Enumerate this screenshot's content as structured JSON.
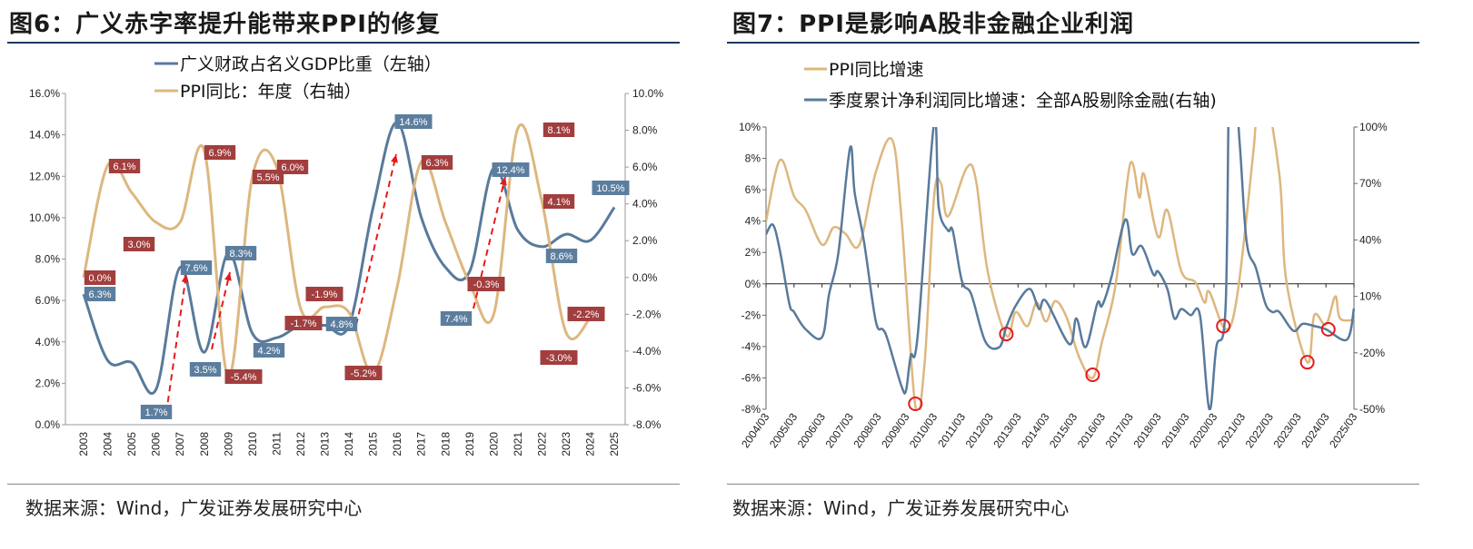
{
  "left": {
    "title": "图6：广义赤字率提升能带来PPI的修复",
    "source": "数据来源：Wind，广发证券发展研究中心"
  },
  "right": {
    "title": "图7：PPI是影响A股非金融企业利润",
    "source": "数据来源：Wind，广发证券发展研究中心"
  },
  "colors": {
    "blue": "#587A9C",
    "tan": "#DDB77F",
    "ppi_label_bg": "#A23E3E",
    "fiscal_label_bg": "#5C7E9E",
    "arrow": "#E8191B",
    "circle": "#E8191B",
    "title_rule": "#1F3864"
  },
  "chart_data": [
    {
      "type": "line",
      "categories": [
        "2003",
        "2004",
        "2005",
        "2006",
        "2007",
        "2008",
        "2009",
        "2010",
        "2011",
        "2012",
        "2013",
        "2014",
        "2015",
        "2016",
        "2017",
        "2018",
        "2019",
        "2020",
        "2021",
        "2022",
        "2023",
        "2024",
        "2025"
      ],
      "left_axis": {
        "ylim": [
          0,
          16
        ],
        "ticks": [
          "0.0%",
          "2.0%",
          "4.0%",
          "6.0%",
          "8.0%",
          "10.0%",
          "12.0%",
          "14.0%",
          "16.0%"
        ]
      },
      "right_axis": {
        "ylim": [
          -8,
          10
        ],
        "ticks": [
          "-8.0%",
          "-6.0%",
          "-4.0%",
          "-2.0%",
          "0.0%",
          "2.0%",
          "4.0%",
          "6.0%",
          "8.0%",
          "10.0%"
        ]
      },
      "legend_position": "top",
      "series": [
        {
          "name": "广义财政占名义GDP比重（左轴）",
          "axis": "left",
          "color_key": "blue",
          "values": [
            6.3,
            3.1,
            3.0,
            1.7,
            7.6,
            3.5,
            8.3,
            4.4,
            4.2,
            4.8,
            4.8,
            4.8,
            10.5,
            14.6,
            10.0,
            7.6,
            7.4,
            12.4,
            9.4,
            8.6,
            9.2,
            8.9,
            10.5
          ]
        },
        {
          "name": "PPI同比：年度（右轴）",
          "axis": "right",
          "color_key": "tan",
          "values": [
            0.0,
            6.1,
            4.6,
            3.0,
            3.0,
            6.9,
            -5.4,
            5.5,
            6.0,
            -1.7,
            -1.6,
            -1.9,
            -5.2,
            -0.5,
            6.3,
            3.0,
            -0.3,
            -2.0,
            8.1,
            4.1,
            -3.0,
            -2.2,
            null
          ]
        }
      ],
      "data_labels": [
        {
          "series": 1,
          "year": "2003",
          "text": "0.0%"
        },
        {
          "series": 1,
          "year": "2004",
          "text": "6.1%"
        },
        {
          "series": 1,
          "year": "2006",
          "text": "3.0%"
        },
        {
          "series": 1,
          "year": "2008",
          "text": "6.9%"
        },
        {
          "series": 1,
          "year": "2009",
          "text": "-5.4%"
        },
        {
          "series": 1,
          "year": "2010",
          "text": "5.5%"
        },
        {
          "series": 1,
          "year": "2011",
          "text": "6.0%"
        },
        {
          "series": 1,
          "year": "2012",
          "text": "-1.7%"
        },
        {
          "series": 1,
          "year": "2014",
          "text": "-1.9%"
        },
        {
          "series": 1,
          "year": "2015",
          "text": "-5.2%"
        },
        {
          "series": 1,
          "year": "2017",
          "text": "6.3%"
        },
        {
          "series": 1,
          "year": "2019",
          "text": "-0.3%"
        },
        {
          "series": 1,
          "year": "2021",
          "text": "8.1%"
        },
        {
          "series": 1,
          "year": "2022",
          "text": "4.1%"
        },
        {
          "series": 1,
          "year": "2023",
          "text": "-3.0%"
        },
        {
          "series": 1,
          "year": "2024",
          "text": "-2.2%"
        },
        {
          "series": 0,
          "year": "2003",
          "text": "6.3%"
        },
        {
          "series": 0,
          "year": "2006",
          "text": "1.7%"
        },
        {
          "series": 0,
          "year": "2007",
          "text": "7.6%"
        },
        {
          "series": 0,
          "year": "2008",
          "text": "3.5%"
        },
        {
          "series": 0,
          "year": "2009",
          "text": "8.3%"
        },
        {
          "series": 0,
          "year": "2011",
          "text": "4.2%"
        },
        {
          "series": 0,
          "year": "2014",
          "text": "4.8%"
        },
        {
          "series": 0,
          "year": "2016",
          "text": "14.6%"
        },
        {
          "series": 0,
          "year": "2019",
          "text": "7.4%"
        },
        {
          "series": 0,
          "year": "2020",
          "text": "12.4%"
        },
        {
          "series": 0,
          "year": "2022",
          "text": "8.6%"
        },
        {
          "series": 0,
          "year": "2025",
          "text": "10.5%"
        }
      ],
      "annotations": [
        {
          "type": "dashed-arrow",
          "from_year": "2006",
          "to_year": "2007"
        },
        {
          "type": "dashed-arrow",
          "from_year": "2008",
          "to_year": "2009"
        },
        {
          "type": "dashed-arrow",
          "from_year": "2014",
          "to_year": "2016"
        },
        {
          "type": "dashed-arrow",
          "from_year": "2019",
          "to_year": "2020"
        }
      ]
    },
    {
      "type": "line",
      "x_ticks": [
        "2004/03",
        "2005/03",
        "2006/03",
        "2007/03",
        "2008/03",
        "2009/03",
        "2010/03",
        "2011/03",
        "2012/03",
        "2013/03",
        "2014/03",
        "2015/03",
        "2016/03",
        "2017/03",
        "2018/03",
        "2019/03",
        "2020/03",
        "2021/03",
        "2022/03",
        "2023/03",
        "2024/03",
        "2025/03"
      ],
      "left_axis": {
        "ylim": [
          -8,
          10
        ],
        "ticks": [
          "-8%",
          "-6%",
          "-4%",
          "-2%",
          "0%",
          "2%",
          "4%",
          "6%",
          "8%",
          "10%"
        ]
      },
      "right_axis": {
        "ylim": [
          -50,
          100
        ],
        "ticks": [
          "-50%",
          "-20%",
          "10%",
          "40%",
          "70%",
          "100%"
        ]
      },
      "legend_position": "top",
      "series": [
        {
          "name": "PPI同比增速",
          "axis": "left",
          "color_key": "tan",
          "points": [
            [
              "2004/03",
              4.0
            ],
            [
              "2004/09",
              7.9
            ],
            [
              "2005/03",
              5.6
            ],
            [
              "2005/08",
              4.7
            ],
            [
              "2006/03",
              2.5
            ],
            [
              "2006/08",
              3.6
            ],
            [
              "2007/01",
              3.2
            ],
            [
              "2007/07",
              2.5
            ],
            [
              "2008/02",
              7.1
            ],
            [
              "2008/09",
              9.2
            ],
            [
              "2009/01",
              4.3
            ],
            [
              "2009/07",
              -7.8
            ],
            [
              "2009/11",
              -5.0
            ],
            [
              "2010/03",
              5.5
            ],
            [
              "2010/06",
              6.4
            ],
            [
              "2010/09",
              4.3
            ],
            [
              "2011/05",
              7.4
            ],
            [
              "2011/09",
              6.6
            ],
            [
              "2012/02",
              0.8
            ],
            [
              "2012/10",
              -3.3
            ],
            [
              "2013/02",
              -1.8
            ],
            [
              "2013/07",
              -2.7
            ],
            [
              "2013/11",
              -1.2
            ],
            [
              "2014/03",
              -2.4
            ],
            [
              "2014/07",
              -1.1
            ],
            [
              "2014/12",
              -2.2
            ],
            [
              "2015/05",
              -4.6
            ],
            [
              "2015/11",
              -6.0
            ],
            [
              "2016/03",
              -3.7
            ],
            [
              "2016/09",
              0.1
            ],
            [
              "2017/03",
              7.6
            ],
            [
              "2017/07",
              5.5
            ],
            [
              "2017/09",
              7.0
            ],
            [
              "2018/03",
              3.0
            ],
            [
              "2018/07",
              4.7
            ],
            [
              "2019/01",
              0.8
            ],
            [
              "2019/07",
              0.1
            ],
            [
              "2019/11",
              -1.2
            ],
            [
              "2020/01",
              -0.5
            ],
            [
              "2020/08",
              -2.9
            ],
            [
              "2021/01",
              -0.7
            ],
            [
              "2021/08",
              8.6
            ],
            [
              "2021/11",
              13.5
            ],
            [
              "2022/07",
              7.0
            ],
            [
              "2022/10",
              0.2
            ],
            [
              "2023/07",
              -5.0
            ],
            [
              "2023/10",
              -2.0
            ],
            [
              "2024/03",
              -2.6
            ],
            [
              "2024/07",
              -0.8
            ],
            [
              "2024/09",
              -2.2
            ],
            [
              "2025/03",
              -2.3
            ]
          ]
        },
        {
          "name": "季度累计净利润同比增速：全部A股剔除金融(右轴)",
          "axis": "right",
          "color_key": "blue",
          "points": [
            [
              "2004/03",
              43
            ],
            [
              "2004/06",
              48
            ],
            [
              "2004/09",
              34
            ],
            [
              "2005/01",
              6
            ],
            [
              "2005/03",
              1.7
            ],
            [
              "2005/08",
              -7.5
            ],
            [
              "2006/03",
              -11.7
            ],
            [
              "2006/06",
              11
            ],
            [
              "2006/10",
              33
            ],
            [
              "2007/03",
              88.8
            ],
            [
              "2007/05",
              65
            ],
            [
              "2007/09",
              39
            ],
            [
              "2008/02",
              -3
            ],
            [
              "2008/05",
              -7.5
            ],
            [
              "2008/07",
              -12.5
            ],
            [
              "2009/01",
              -37.5
            ],
            [
              "2009/03",
              -40
            ],
            [
              "2009/05",
              -21.7
            ],
            [
              "2009/08",
              -10.8
            ],
            [
              "2010/03",
              102
            ],
            [
              "2010/05",
              57.5
            ],
            [
              "2010/09",
              45
            ],
            [
              "2010/11",
              45
            ],
            [
              "2011/03",
              18
            ],
            [
              "2011/07",
              11
            ],
            [
              "2012/01",
              -14
            ],
            [
              "2012/07",
              -17
            ],
            [
              "2012/10",
              -6.3
            ],
            [
              "2013/02",
              5
            ],
            [
              "2013/08",
              14
            ],
            [
              "2013/12",
              3.3
            ],
            [
              "2014/03",
              7.5
            ],
            [
              "2015/01",
              -15.4
            ],
            [
              "2015/04",
              -1.7
            ],
            [
              "2015/08",
              -17
            ],
            [
              "2016/01",
              6.3
            ],
            [
              "2016/03",
              5
            ],
            [
              "2016/07",
              20
            ],
            [
              "2017/01",
              50.8
            ],
            [
              "2017/04",
              32.5
            ],
            [
              "2017/08",
              36.7
            ],
            [
              "2018/01",
              21.7
            ],
            [
              "2018/03",
              23.3
            ],
            [
              "2018/07",
              14
            ],
            [
              "2018/10",
              -1.7
            ],
            [
              "2019/01",
              3.3
            ],
            [
              "2019/05",
              0
            ],
            [
              "2019/09",
              0
            ],
            [
              "2020/01",
              -50
            ],
            [
              "2020/04",
              -17
            ],
            [
              "2020/08",
              5
            ],
            [
              "2020/10",
              150
            ],
            [
              "2021/02",
              91.7
            ],
            [
              "2021/05",
              39
            ],
            [
              "2021/09",
              25
            ],
            [
              "2022/01",
              6.3
            ],
            [
              "2022/04",
              1.7
            ],
            [
              "2022/07",
              1.7
            ],
            [
              "2023/01",
              -8.3
            ],
            [
              "2023/05",
              -4.6
            ],
            [
              "2023/10",
              -5.8
            ],
            [
              "2024/03",
              -7.5
            ],
            [
              "2024/12",
              -13
            ],
            [
              "2025/03",
              3.6
            ]
          ]
        }
      ],
      "highlights": [
        [
          "2009/07",
          -7.65
        ],
        [
          "2012/10",
          -3.2
        ],
        [
          "2015/11",
          -5.8
        ],
        [
          "2020/07",
          -2.7
        ],
        [
          "2023/07",
          -5.0
        ],
        [
          "2024/04",
          -2.9
        ]
      ]
    }
  ]
}
